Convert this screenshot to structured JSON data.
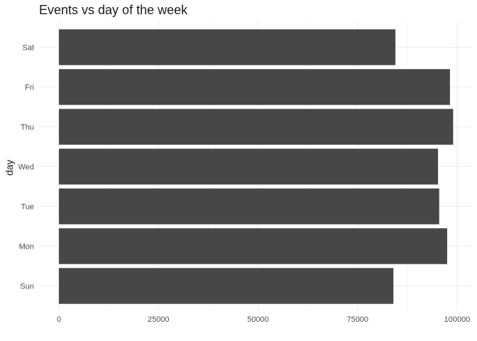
{
  "chart_data": {
    "type": "bar",
    "orientation": "horizontal",
    "title": "Events vs day of the week",
    "xlabel": "",
    "ylabel": "day",
    "categories": [
      "Sun",
      "Mon",
      "Tue",
      "Wed",
      "Thu",
      "Fri",
      "Sat"
    ],
    "values": [
      84000,
      97500,
      95500,
      95200,
      99000,
      98200,
      84500
    ],
    "xlim": [
      0,
      103000
    ],
    "xticks": [
      0,
      25000,
      50000,
      75000,
      100000
    ],
    "xtick_labels": [
      "0",
      "25000",
      "50000",
      "75000",
      "100000"
    ],
    "grid": true,
    "legend": "none",
    "bar_color": "#474747",
    "grid_color": "#ebebeb"
  }
}
